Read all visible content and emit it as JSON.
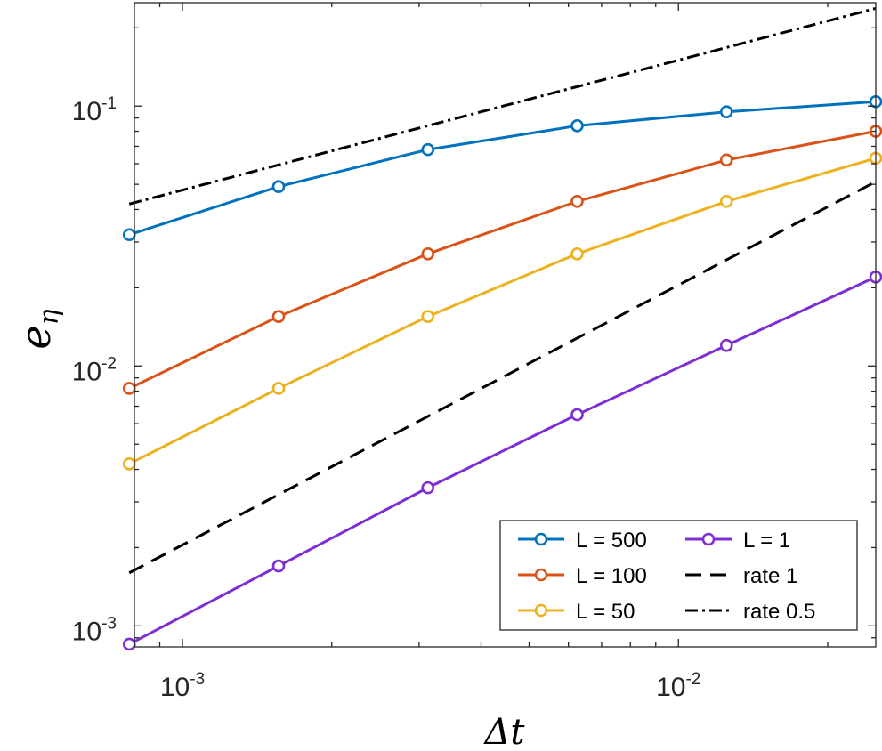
{
  "chart_data": {
    "type": "line",
    "xscale": "log",
    "yscale": "log",
    "xlim": [
      0.0008,
      0.025
    ],
    "ylim": [
      0.00083,
      0.25
    ],
    "xlabel": "Δt",
    "ylabel_main": "e",
    "ylabel_sub": "η",
    "x_ticks": [
      {
        "value": 0.001,
        "base": "10",
        "exp": "-3"
      },
      {
        "value": 0.01,
        "base": "10",
        "exp": "-2"
      }
    ],
    "y_ticks": [
      {
        "value": 0.001,
        "base": "10",
        "exp": "-3"
      },
      {
        "value": 0.01,
        "base": "10",
        "exp": "-2"
      },
      {
        "value": 0.1,
        "base": "10",
        "exp": "-1"
      }
    ],
    "x": [
      0.00078125,
      0.0015625,
      0.003125,
      0.00625,
      0.0125,
      0.025
    ],
    "series": [
      {
        "name": "L = 500",
        "color": "#0072BD",
        "style": "solid",
        "marker": true,
        "values": [
          0.032,
          0.049,
          0.068,
          0.084,
          0.095,
          0.104
        ]
      },
      {
        "name": "L = 100",
        "color": "#D95319",
        "style": "solid",
        "marker": true,
        "values": [
          0.0082,
          0.0155,
          0.027,
          0.043,
          0.062,
          0.08
        ]
      },
      {
        "name": "L = 50",
        "color": "#EDB120",
        "style": "solid",
        "marker": true,
        "values": [
          0.0042,
          0.0082,
          0.0155,
          0.027,
          0.043,
          0.063
        ]
      },
      {
        "name": "L = 1",
        "color": "#7E2FD3",
        "style": "solid",
        "marker": true,
        "values": [
          0.00085,
          0.0017,
          0.0034,
          0.0065,
          0.012,
          0.022
        ]
      },
      {
        "name": "rate 1",
        "color": "#000000",
        "style": "dashed",
        "marker": false,
        "values": [
          0.0016,
          0.0032,
          0.0064,
          0.0128,
          0.0256,
          0.0512
        ]
      },
      {
        "name": "rate 0.5",
        "color": "#000000",
        "style": "dashdot",
        "marker": false,
        "values": [
          0.042,
          0.0594,
          0.084,
          0.1188,
          0.168,
          0.2376
        ]
      }
    ],
    "legend": {
      "location": "bottom-right",
      "columns": 2,
      "order": [
        "L = 500",
        "L = 1",
        "L = 100",
        "rate 1",
        "L = 50",
        "rate 0.5"
      ]
    }
  }
}
